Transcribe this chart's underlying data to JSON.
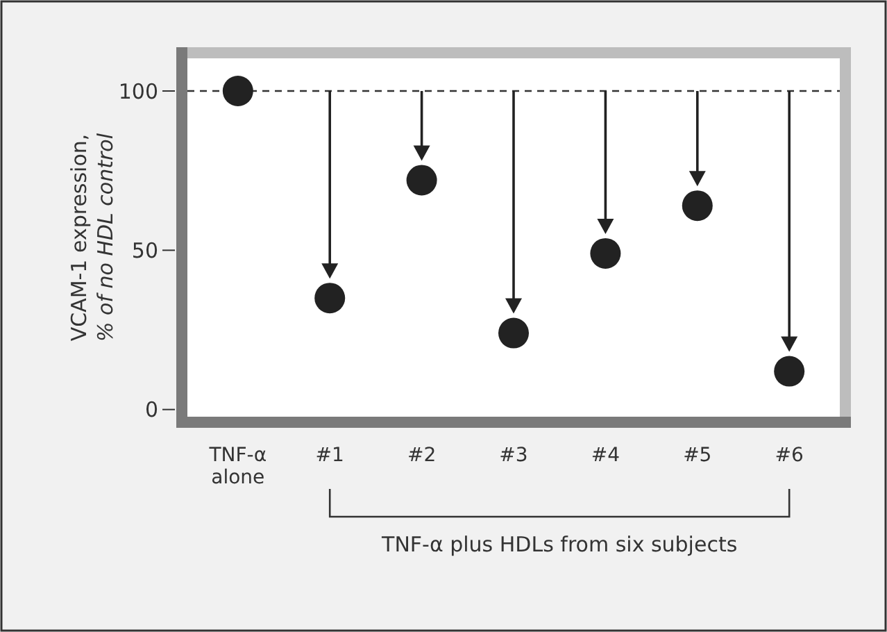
{
  "chart_data": {
    "type": "scatter",
    "ylabel": "VCAM-1 expression, % of no HDL control",
    "categories": [
      "TNF-α alone",
      "#1",
      "#2",
      "#3",
      "#4",
      "#5",
      "#6"
    ],
    "values": [
      100,
      35,
      72,
      24,
      49,
      64,
      12
    ],
    "color": "#222222",
    "marker": "circle",
    "ylim": [
      -4,
      112
    ],
    "yticks": [
      0,
      50,
      100
    ],
    "grid": false,
    "ref_lines": [
      {
        "axis": "y",
        "value": 100,
        "line_style": "dashed",
        "color": "#333333"
      }
    ],
    "annotations": [
      "TNF-α plus HDLs from six subjects"
    ]
  }
}
